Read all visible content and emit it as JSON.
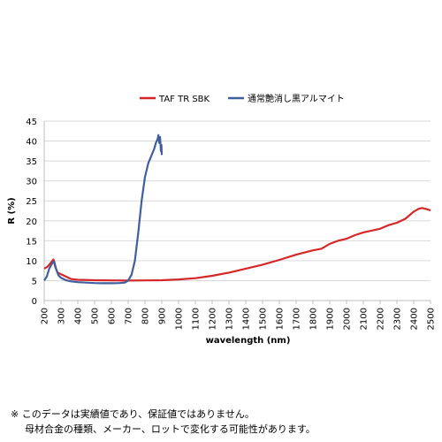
{
  "chart_data": {
    "type": "line",
    "title": "",
    "xlabel": "wavelength (nm)",
    "ylabel": "R (%)",
    "xlim": [
      200,
      2500
    ],
    "ylim": [
      0,
      45
    ],
    "xticks": [
      200,
      300,
      400,
      500,
      600,
      700,
      800,
      900,
      1000,
      1100,
      1200,
      1300,
      1400,
      1500,
      1600,
      1700,
      1800,
      1900,
      2000,
      2100,
      2200,
      2300,
      2400,
      2500
    ],
    "yticks": [
      0,
      5,
      10,
      15,
      20,
      25,
      30,
      35,
      40,
      45
    ],
    "grid": true,
    "legend_position": "top",
    "series": [
      {
        "name": "TAF TR SBK",
        "color": "#d62728",
        "points": [
          [
            200,
            8
          ],
          [
            220,
            8.5
          ],
          [
            240,
            9.5
          ],
          [
            255,
            10.3
          ],
          [
            265,
            8.5
          ],
          [
            280,
            7
          ],
          [
            300,
            6.6
          ],
          [
            330,
            6
          ],
          [
            360,
            5.4
          ],
          [
            400,
            5.2
          ],
          [
            500,
            5.1
          ],
          [
            600,
            5.05
          ],
          [
            700,
            5.0
          ],
          [
            800,
            5.05
          ],
          [
            900,
            5.1
          ],
          [
            1000,
            5.3
          ],
          [
            1100,
            5.6
          ],
          [
            1200,
            6.2
          ],
          [
            1300,
            7.0
          ],
          [
            1400,
            8.0
          ],
          [
            1500,
            9.0
          ],
          [
            1600,
            10.2
          ],
          [
            1700,
            11.5
          ],
          [
            1800,
            12.6
          ],
          [
            1850,
            13.0
          ],
          [
            1900,
            14.2
          ],
          [
            1950,
            15.0
          ],
          [
            2000,
            15.5
          ],
          [
            2050,
            16.4
          ],
          [
            2100,
            17.1
          ],
          [
            2200,
            18.0
          ],
          [
            2250,
            18.9
          ],
          [
            2300,
            19.5
          ],
          [
            2350,
            20.5
          ],
          [
            2400,
            22.3
          ],
          [
            2430,
            23.0
          ],
          [
            2450,
            23.2
          ],
          [
            2480,
            22.9
          ],
          [
            2500,
            22.6
          ]
        ]
      },
      {
        "name": "通常艶消し黒アルマイト",
        "color": "#3f5f9f",
        "points": [
          [
            200,
            5
          ],
          [
            215,
            6
          ],
          [
            230,
            8
          ],
          [
            250,
            9.5
          ],
          [
            260,
            9.8
          ],
          [
            270,
            8
          ],
          [
            285,
            6.3
          ],
          [
            300,
            5.7
          ],
          [
            330,
            5.1
          ],
          [
            360,
            4.8
          ],
          [
            400,
            4.6
          ],
          [
            450,
            4.5
          ],
          [
            500,
            4.4
          ],
          [
            550,
            4.35
          ],
          [
            600,
            4.35
          ],
          [
            650,
            4.4
          ],
          [
            680,
            4.5
          ],
          [
            700,
            5
          ],
          [
            720,
            6.5
          ],
          [
            740,
            10
          ],
          [
            760,
            17
          ],
          [
            780,
            25
          ],
          [
            800,
            31
          ],
          [
            820,
            34.5
          ],
          [
            840,
            36.5
          ],
          [
            855,
            38
          ],
          [
            865,
            39.5
          ],
          [
            875,
            40.5
          ],
          [
            880,
            41.5
          ],
          [
            885,
            39.5
          ],
          [
            890,
            41
          ],
          [
            895,
            37.5
          ],
          [
            898,
            39
          ],
          [
            900,
            36.5
          ]
        ]
      }
    ]
  },
  "note": {
    "line1": "※ このデータは実績値であり、保証値ではありません。",
    "line2": "母材合金の種類、メーカー、ロットで変化する可能性があります。"
  }
}
